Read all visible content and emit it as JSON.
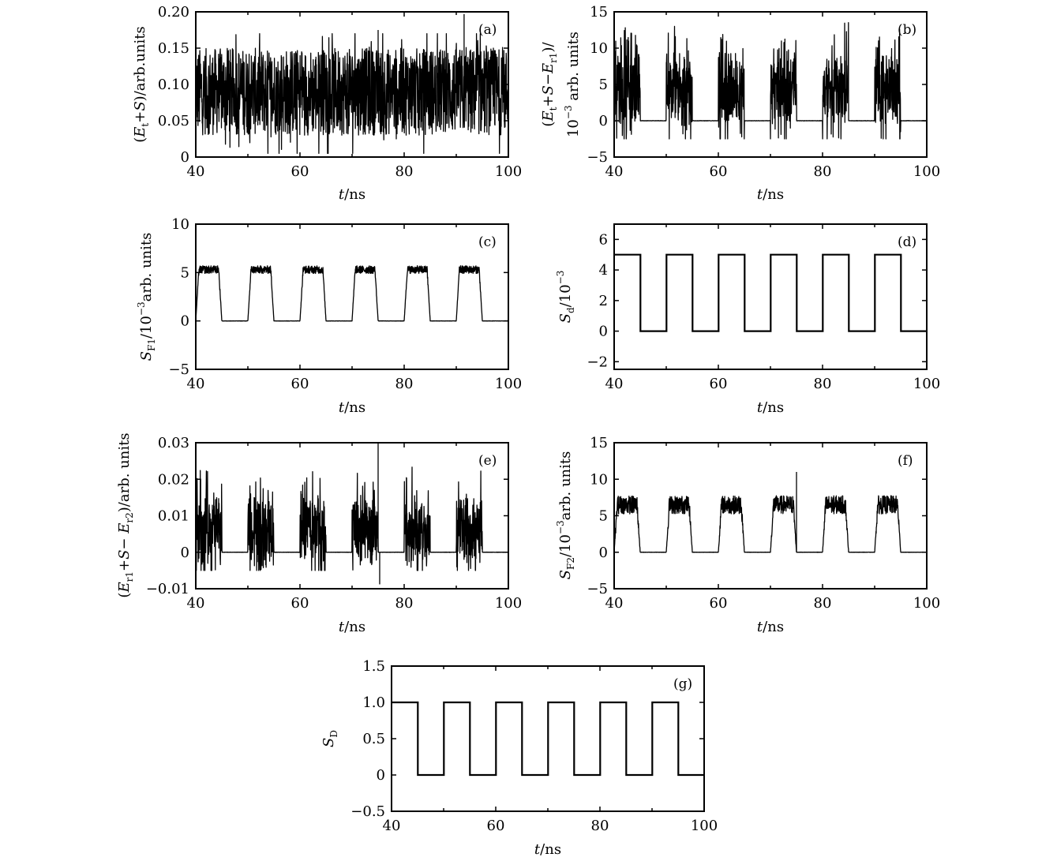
{
  "chart_data": [
    {
      "id": "a",
      "type": "line",
      "panel_label": "(a)",
      "xlabel": "t/ns",
      "ylabel": "(Et+S)/arb.units",
      "xlim": [
        40,
        100
      ],
      "ylim": [
        0,
        0.2
      ],
      "xticks": [
        "40",
        "60",
        "80",
        "100"
      ],
      "yticks": [
        "0",
        "0.05",
        "0.10",
        "0.15",
        "0.20"
      ],
      "series": [
        {
          "name": "Et+S",
          "kind": "chaotic",
          "mean": 0.09,
          "min": 0.005,
          "max": 0.2,
          "spikes": [
            {
              "x": 75,
              "y": 0.175
            },
            {
              "x": 91.5,
              "y": 0.197
            }
          ]
        }
      ]
    },
    {
      "id": "b",
      "type": "line",
      "panel_label": "(b)",
      "xlabel": "t/ns",
      "ylabel": "(Et+S−Er1)/ 10^−3 arb. units",
      "xlim": [
        40,
        100
      ],
      "ylim": [
        -5,
        15
      ],
      "xticks": [
        "40",
        "60",
        "80",
        "100"
      ],
      "yticks": [
        "−5",
        "0",
        "5",
        "10",
        "15"
      ],
      "series": [
        {
          "name": "Et+S−Er1",
          "kind": "burst",
          "on_level": 4,
          "amplitude": 13.8,
          "off_level": 0,
          "on_intervals": [
            [
              40,
              45
            ],
            [
              50,
              55
            ],
            [
              60,
              65
            ],
            [
              70,
              75
            ],
            [
              80,
              85
            ],
            [
              90,
              95
            ]
          ]
        }
      ]
    },
    {
      "id": "c",
      "type": "line",
      "panel_label": "(c)",
      "xlabel": "t/ns",
      "ylabel": "SF1/10^−3 arb. units",
      "xlim": [
        40,
        100
      ],
      "ylim": [
        -5,
        10
      ],
      "xticks": [
        "40",
        "60",
        "80",
        "100"
      ],
      "yticks": [
        "−5",
        "0",
        "5",
        "10"
      ],
      "series": [
        {
          "name": "SF1",
          "kind": "plateau",
          "on_level": 5.3,
          "amplitude": 0.8,
          "off_level": 0,
          "on_intervals": [
            [
              40,
              45
            ],
            [
              50,
              55
            ],
            [
              60,
              65
            ],
            [
              70,
              75
            ],
            [
              80,
              85
            ],
            [
              90,
              95
            ]
          ]
        }
      ]
    },
    {
      "id": "d",
      "type": "line",
      "panel_label": "(d)",
      "xlabel": "t/ns",
      "ylabel": "Sd/10^−3",
      "xlim": [
        40,
        100
      ],
      "ylim": [
        -2.5,
        7
      ],
      "xticks": [
        "40",
        "60",
        "80",
        "100"
      ],
      "yticks": [
        "−2",
        "0",
        "2",
        "4",
        "6"
      ],
      "series": [
        {
          "name": "Sd",
          "kind": "square",
          "on_level": 5,
          "off_level": 0,
          "on_intervals": [
            [
              40,
              45
            ],
            [
              50,
              55
            ],
            [
              60,
              65
            ],
            [
              70,
              75
            ],
            [
              80,
              85
            ],
            [
              90,
              95
            ]
          ]
        }
      ]
    },
    {
      "id": "e",
      "type": "line",
      "panel_label": "(e)",
      "xlabel": "t/ns",
      "ylabel": "(Er1+S−Er2)/arb. units",
      "xlim": [
        40,
        100
      ],
      "ylim": [
        -0.01,
        0.03
      ],
      "xticks": [
        "40",
        "60",
        "80",
        "100"
      ],
      "yticks": [
        "−0.01",
        "0",
        "0.01",
        "0.02",
        "0.03"
      ],
      "series": [
        {
          "name": "Er1+S−Er2",
          "kind": "burst",
          "on_level": 0.006,
          "amplitude": 0.025,
          "off_level": 0,
          "on_intervals": [
            [
              40,
              45
            ],
            [
              50,
              55
            ],
            [
              60,
              65
            ],
            [
              70,
              75
            ],
            [
              80,
              85
            ],
            [
              90,
              95
            ]
          ],
          "spikes": [
            {
              "x": 75,
              "y": 0.0308
            },
            {
              "x": 75.3,
              "y": -0.0088
            }
          ]
        }
      ]
    },
    {
      "id": "f",
      "type": "line",
      "panel_label": "(f)",
      "xlabel": "t/ns",
      "ylabel": "SF2/10^−3 arb. units",
      "xlim": [
        40,
        100
      ],
      "ylim": [
        -5,
        15
      ],
      "xticks": [
        "40",
        "60",
        "80",
        "100"
      ],
      "yticks": [
        "−5",
        "0",
        "5",
        "10",
        "15"
      ],
      "series": [
        {
          "name": "SF2",
          "kind": "plateau",
          "on_level": 6.5,
          "amplitude": 2.5,
          "off_level": 0,
          "on_intervals": [
            [
              40,
              45
            ],
            [
              50,
              55
            ],
            [
              60,
              65
            ],
            [
              70,
              75
            ],
            [
              80,
              85
            ],
            [
              90,
              95
            ]
          ],
          "spikes": [
            {
              "x": 75,
              "y": 11
            }
          ]
        }
      ]
    },
    {
      "id": "g",
      "type": "line",
      "panel_label": "(g)",
      "xlabel": "t/ns",
      "ylabel": "SD",
      "xlim": [
        40,
        100
      ],
      "ylim": [
        -0.5,
        1.5
      ],
      "xticks": [
        "40",
        "60",
        "80",
        "100"
      ],
      "yticks": [
        "−0.5",
        "0",
        "0.5",
        "1.0",
        "1.5"
      ],
      "series": [
        {
          "name": "SD",
          "kind": "square",
          "on_level": 1,
          "off_level": 0,
          "on_intervals": [
            [
              40,
              45
            ],
            [
              50,
              55
            ],
            [
              60,
              65
            ],
            [
              70,
              75
            ],
            [
              80,
              85
            ],
            [
              90,
              95
            ]
          ]
        }
      ]
    }
  ]
}
